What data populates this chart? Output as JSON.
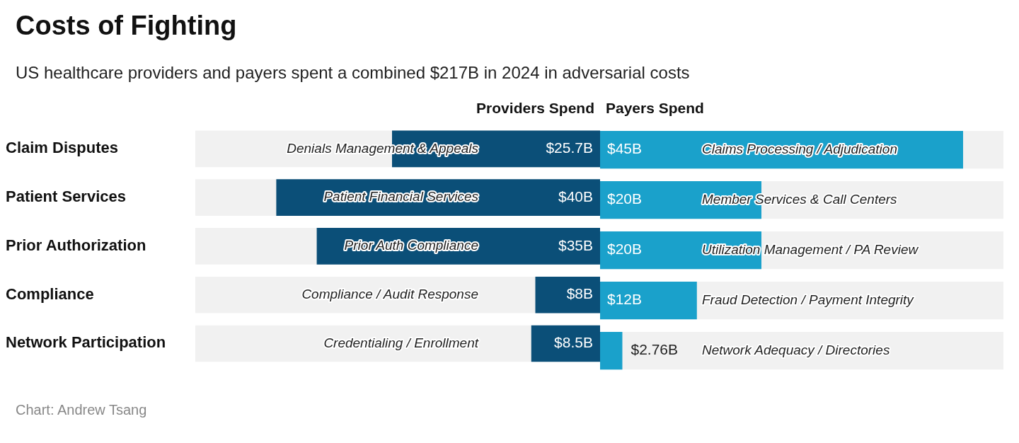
{
  "chart_data": [
    {
      "type": "bar",
      "orientation": "horizontal",
      "title": "Costs of Fighting",
      "subtitle": "US healthcare providers and payers spent a combined $217B in 2024 in adversarial costs",
      "categories": [
        "Claim Disputes",
        "Patient Services",
        "Prior Authorization",
        "Compliance",
        "Network Participation"
      ],
      "xlim": [
        50,
        0
      ],
      "tick_labels": "y",
      "series": [
        {
          "name": "Providers Spend",
          "color": "#0b4f78",
          "values": [
            25.7,
            40,
            35,
            8,
            8.5
          ],
          "value_labels": [
            "$25.7B",
            "$40B",
            "$35B",
            "$8B",
            "$8.5B"
          ]
        }
      ],
      "annotations": [
        "Denials Management & Appeals",
        "Patient Financial Services",
        "Prior Auth Compliance",
        "Compliance / Audit Response",
        "Credentialing / Enrollment"
      ]
    },
    {
      "type": "bar",
      "orientation": "horizontal",
      "categories": [
        null,
        null,
        null,
        null,
        null
      ],
      "xlim": [
        0,
        50
      ],
      "tick_labels": false,
      "series": [
        {
          "name": "Payers Spend",
          "color": "#1aa1cb",
          "values": [
            45,
            20,
            20,
            12,
            2.76
          ],
          "value_labels": [
            "$45B",
            "$20B",
            "$20B",
            "$12B",
            "$2.76B"
          ]
        }
      ],
      "annotations": [
        "Claims Processing / Adjudication",
        "Member Services & Call Centers",
        "Utilization Management / PA Review",
        "Fraud Detection / Payment Integrity",
        "Network Adequacy / Directories",
        "Chart: Andrew Tsang"
      ]
    }
  ]
}
